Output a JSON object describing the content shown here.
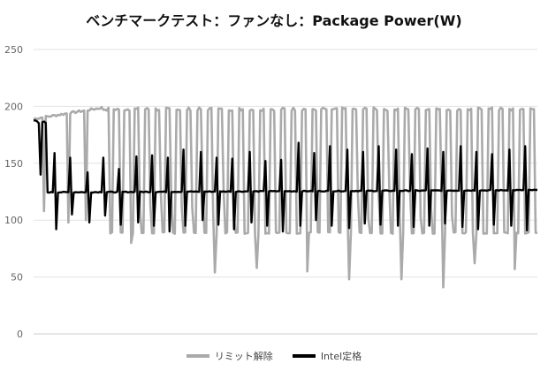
{
  "chart_data": {
    "type": "line",
    "title": "ベンチマークテスト：ファンなし：Package Power(W)",
    "xlabel": "",
    "ylabel": "",
    "ylim": [
      0,
      250
    ],
    "yticks": [
      0,
      50,
      100,
      150,
      200,
      250
    ],
    "grid": true,
    "legend_position": "bottom",
    "x_count": 290,
    "series": [
      {
        "name": "リミット解除",
        "color": "#aaaaaa",
        "pattern": {
          "high_plateau": [
            188,
            198
          ],
          "low_plateau": 88,
          "cycles": 42,
          "early_low_values": [
            108,
            98,
            100
          ],
          "deep_dips": [
            80,
            54,
            58,
            55,
            48,
            48,
            41,
            62,
            57
          ]
        }
      },
      {
        "name": "Intel定格",
        "color": "#000000",
        "pattern": {
          "start_value": 188,
          "baseline": [
            124,
            126
          ],
          "spike_highs": [
            159,
            155,
            142,
            155,
            145,
            156,
            157,
            155,
            162,
            160,
            155,
            154,
            160,
            152,
            153,
            168,
            159,
            165,
            162,
            160,
            165,
            162,
            158,
            163,
            160,
            165,
            160,
            158,
            162,
            165
          ],
          "spike_lows": [
            92,
            105,
            98,
            104,
            96,
            98,
            95,
            90,
            95,
            100,
            96,
            92,
            98,
            95,
            90,
            95,
            100,
            95,
            93,
            97,
            96,
            95,
            94,
            95,
            97,
            94,
            92,
            96,
            95,
            91
          ]
        }
      }
    ]
  }
}
